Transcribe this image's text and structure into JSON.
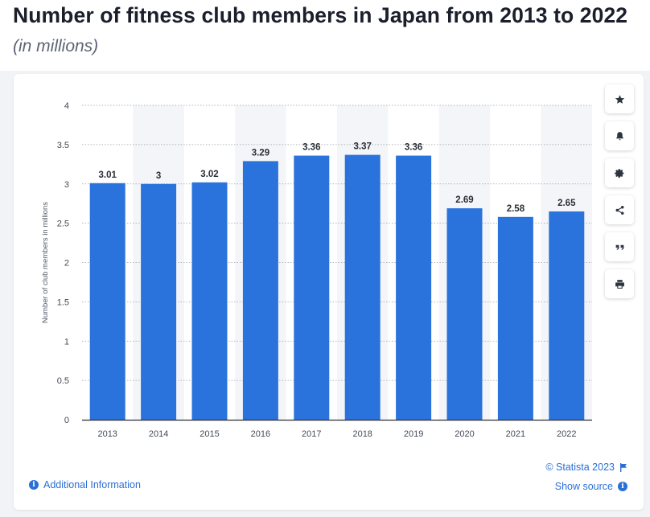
{
  "header": {
    "title": "Number of fitness club members in Japan from 2013 to 2022",
    "subtitle": "(in millions)"
  },
  "toolbar": {
    "items": [
      {
        "name": "favorite",
        "icon": "star-icon"
      },
      {
        "name": "notification",
        "icon": "bell-icon"
      },
      {
        "name": "settings",
        "icon": "gear-icon"
      },
      {
        "name": "share",
        "icon": "share-icon"
      },
      {
        "name": "cite",
        "icon": "quote-icon"
      },
      {
        "name": "print",
        "icon": "print-icon"
      }
    ]
  },
  "footer": {
    "additional_info": "Additional Information",
    "copyright": "© Statista 2023",
    "show_source": "Show source"
  },
  "colors": {
    "bar": "#2a73dc",
    "band": "#f4f5f8",
    "accent": "#2a6fd6"
  },
  "chart_data": {
    "type": "bar",
    "title": "Number of fitness club members in Japan from 2013 to 2022",
    "subtitle": "(in millions)",
    "xlabel": "",
    "ylabel": "Number of club members in millions",
    "categories": [
      "2013",
      "2014",
      "2015",
      "2016",
      "2017",
      "2018",
      "2019",
      "2020",
      "2021",
      "2022"
    ],
    "values": [
      3.01,
      3,
      3.02,
      3.29,
      3.36,
      3.37,
      3.36,
      2.69,
      2.58,
      2.65
    ],
    "value_labels": [
      "3.01",
      "3",
      "3.02",
      "3.29",
      "3.36",
      "3.37",
      "3.36",
      "2.69",
      "2.58",
      "2.65"
    ],
    "ylim": [
      0,
      4
    ],
    "yticks": [
      "0",
      "0.5",
      "1",
      "1.5",
      "2",
      "2.5",
      "3",
      "3.5",
      "4"
    ],
    "grid": true,
    "legend": "none"
  }
}
